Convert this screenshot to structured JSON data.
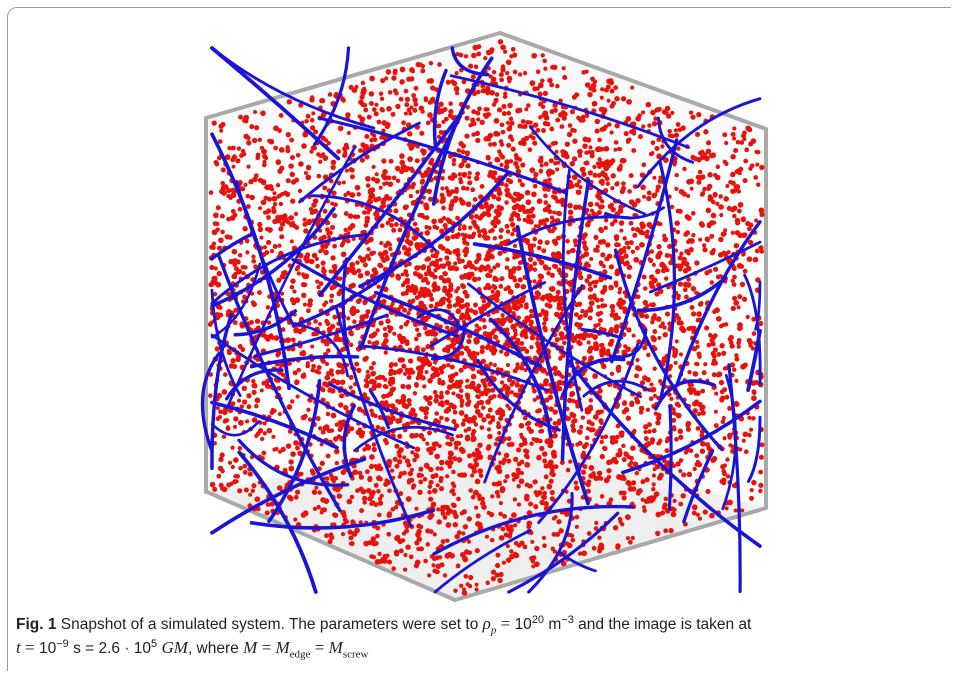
{
  "figure": {
    "label": "Fig. 1",
    "caption": {
      "part1": "Snapshot of a simulated system. The parameters were set to",
      "rho_symbol": "ρ",
      "rho_sub": "p",
      "eq1": "=",
      "rho_base": "10",
      "rho_exp": "20",
      "rho_unit": "m",
      "rho_unit_exp": "−3",
      "part2": "and the image is taken at",
      "t_symbol": "t",
      "eq2": "=",
      "t_base": "10",
      "t_exp": "−9",
      "t_unit": "s = 2.6 · 10",
      "t_exp2": "5",
      "gm": "GM",
      "part3": ", where",
      "m_symbol": "M",
      "eq3": "=",
      "m_edge": "M",
      "m_edge_sub": "edge",
      "eq4": "=",
      "m_screw": "M",
      "m_screw_sub": "screw"
    }
  },
  "scene": {
    "particle_color": "#e8120c",
    "dislocation_color": "#1a14d8",
    "box_edge_color": "#a8a8a8",
    "box_floor_color": "#ececec"
  }
}
